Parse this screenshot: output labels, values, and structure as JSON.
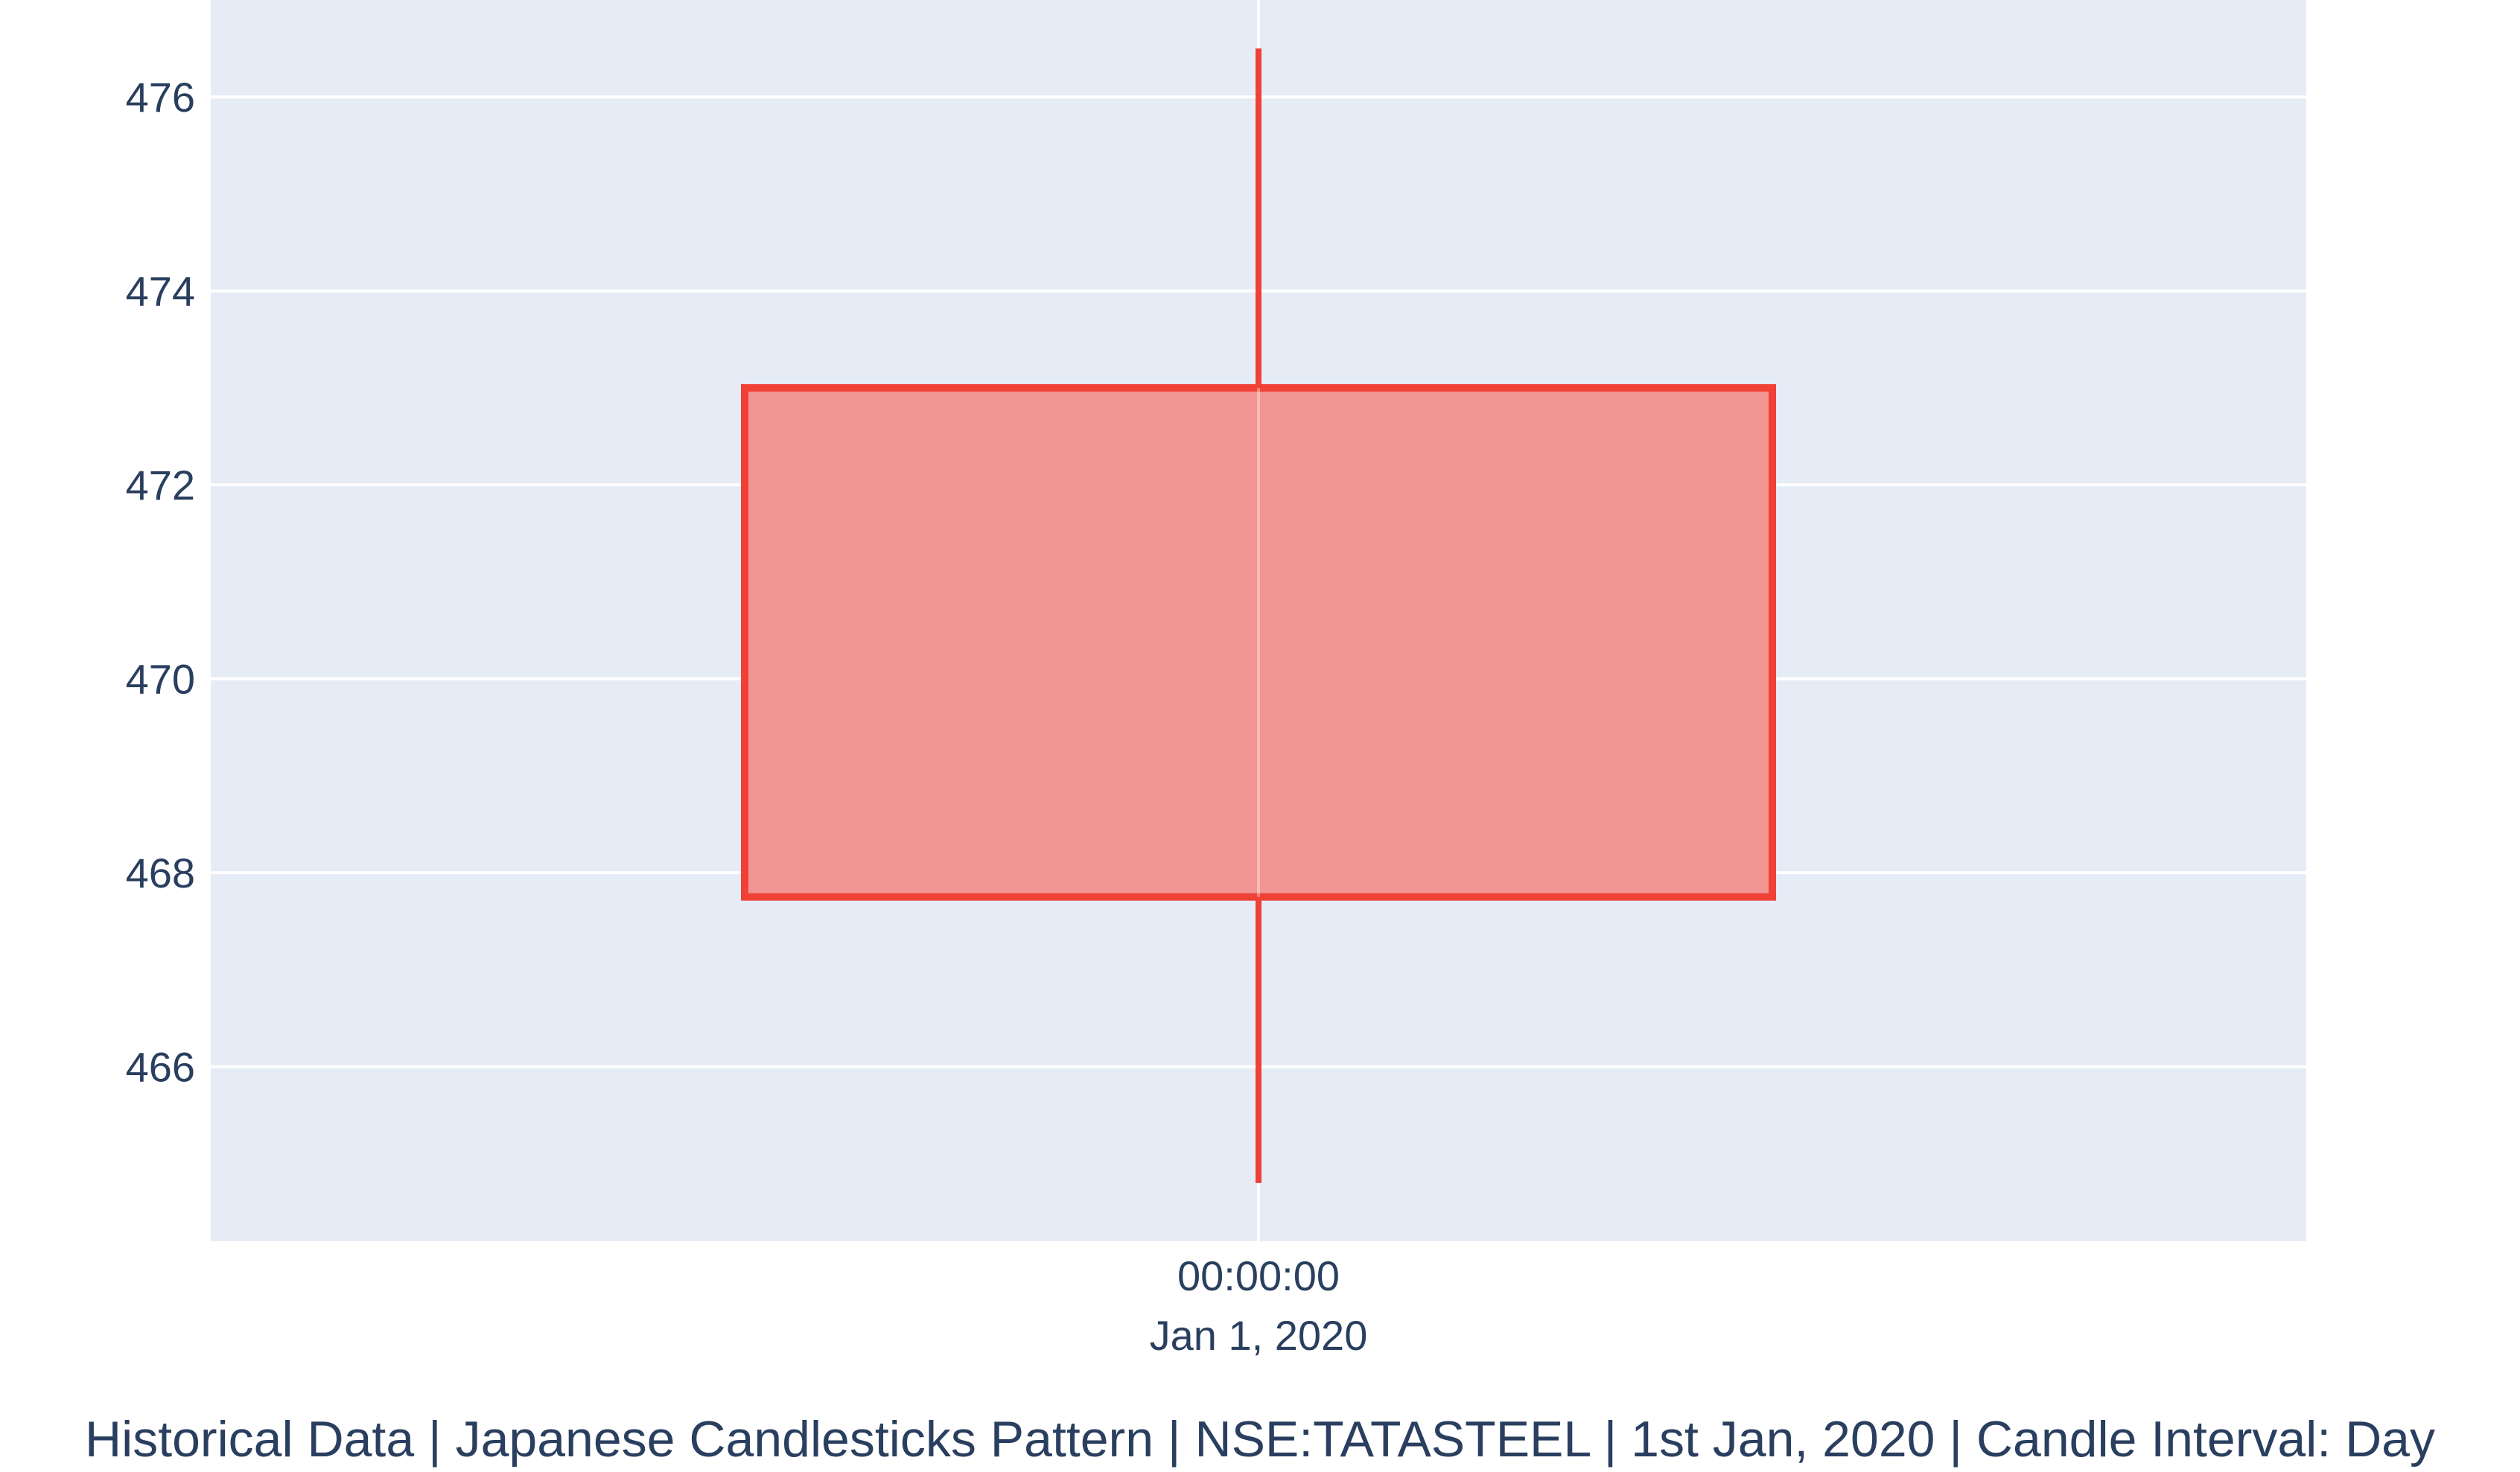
{
  "chart_data": {
    "type": "candlestick",
    "xlabel": "Historical Data | Japanese Candlesticks Pattern | NSE:TATASTEEL | 1st Jan, 2020 | Candle Interval: Day",
    "ylabel": "",
    "grid": true,
    "colors": {
      "plot_bg": "#e5ecf6",
      "grid": "#ffffff",
      "decreasing_line": "#ef4136",
      "decreasing_fill": "#f19593",
      "text": "#2a3f5f"
    },
    "x_tick": {
      "time": "00:00:00",
      "date": "Jan 1, 2020"
    },
    "ylim": [
      464.2,
      477.0
    ],
    "y_ticks": [
      466,
      468,
      470,
      472,
      474,
      476
    ],
    "x_range_days": [
      -0.5,
      0.5
    ],
    "candles": [
      {
        "x": "2020-01-01",
        "open": 473.0,
        "high": 476.5,
        "low": 464.8,
        "close": 467.75
      }
    ]
  }
}
